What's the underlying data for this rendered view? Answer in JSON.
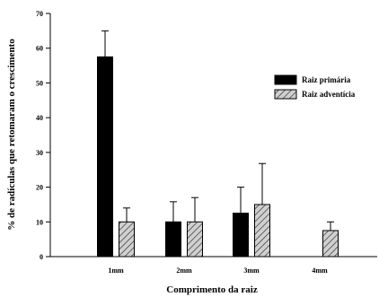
{
  "chart_data": {
    "type": "bar",
    "categories": [
      "1mm",
      "2mm",
      "3mm",
      "4mm"
    ],
    "series": [
      {
        "name": "Raiz primária",
        "values": [
          57.5,
          10,
          12.5,
          null
        ],
        "error_upper": [
          65,
          15.8,
          20,
          null
        ],
        "color": "#000000",
        "pattern": "solid"
      },
      {
        "name": "Raiz adventícia",
        "values": [
          10,
          10,
          15,
          7.5
        ],
        "error_upper": [
          14,
          17,
          26.8,
          10
        ],
        "color": "#d0d0d0",
        "pattern": "diagonal-hatch"
      }
    ],
    "xlabel": "Comprimento da raiz",
    "ylabel": "% de radículas que retomaram o crescimento",
    "ylim": [
      0,
      70
    ],
    "yticks": [
      0,
      10,
      20,
      30,
      40,
      50,
      60,
      70
    ],
    "grid": false,
    "legend_position": "top-right"
  }
}
